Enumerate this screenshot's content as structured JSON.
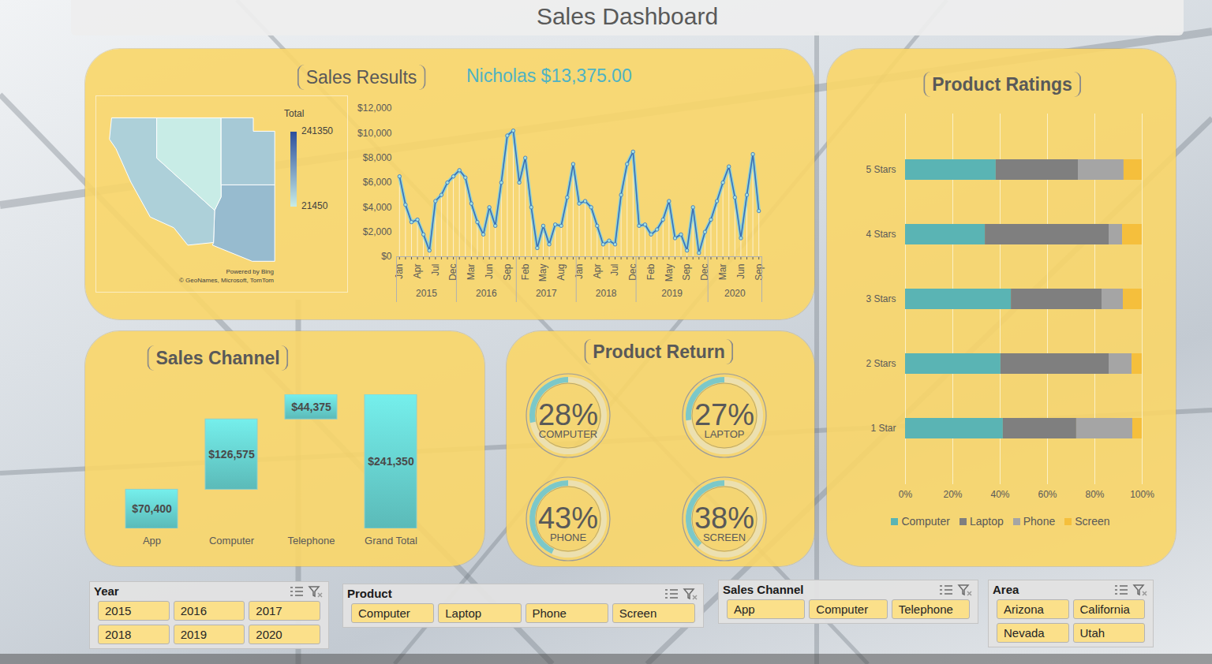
{
  "title": "Sales Dashboard",
  "chart_data": [
    {
      "type": "map",
      "title": "Sales Results",
      "highlight": "Nicholas $13,375.00",
      "regions": [
        "Arizona",
        "California",
        "Nevada",
        "Utah"
      ],
      "values": [
        89900,
        60000,
        21450,
        70000
      ],
      "legend_title": "Total",
      "color_range": [
        21450,
        241350
      ],
      "color_ticks": [
        21450,
        241350
      ],
      "attribution": [
        "Powered by Bing",
        "© GeoNames, Microsoft, TomTom"
      ]
    },
    {
      "type": "line",
      "categories": [
        "Jan",
        null,
        null,
        "Apr",
        null,
        null,
        "Jul",
        null,
        null,
        "Dec",
        null,
        null,
        "Mar",
        null,
        null,
        "Jun",
        null,
        null,
        "Sep",
        null,
        null,
        "Feb",
        null,
        null,
        "May",
        null,
        null,
        "Aug",
        null,
        null,
        "Jan",
        null,
        null,
        "Apr",
        null,
        null,
        "Jul",
        null,
        null,
        "Dec",
        null,
        null,
        "Feb",
        null,
        null,
        "May",
        null,
        null,
        "Sep",
        null,
        null,
        "Dec",
        null,
        null,
        "Mar",
        null,
        null,
        "Jun",
        null,
        null,
        "Sep"
      ],
      "x_groups": [
        {
          "label": "2015",
          "count": 10
        },
        {
          "label": "2016",
          "count": 10
        },
        {
          "label": "2017",
          "count": 10
        },
        {
          "label": "2018",
          "count": 10
        },
        {
          "label": "2019",
          "count": 12
        },
        {
          "label": "2020",
          "count": 9
        }
      ],
      "values": [
        6500,
        4200,
        2800,
        3000,
        1800,
        500,
        4500,
        5000,
        6000,
        6500,
        7000,
        6400,
        4300,
        2800,
        1800,
        4000,
        2500,
        6000,
        9800,
        10200,
        6000,
        8000,
        4000,
        700,
        2500,
        1000,
        2600,
        2500,
        4800,
        7500,
        4300,
        4500,
        4000,
        2500,
        1000,
        1300,
        1000,
        5000,
        7500,
        8500,
        2500,
        2600,
        1800,
        2200,
        3000,
        4500,
        1500,
        1800,
        500,
        4000,
        300,
        2000,
        3000,
        4500,
        6000,
        7300,
        4800,
        1500,
        5000,
        8300,
        3700
      ],
      "ylim": [
        0,
        12000
      ],
      "yticks": [
        {
          "value": 0,
          "label": "$0"
        },
        {
          "value": 2000,
          "label": "$2,000"
        },
        {
          "value": 4000,
          "label": "$4,000"
        },
        {
          "value": 6000,
          "label": "$6,000"
        },
        {
          "value": 8000,
          "label": "$8,000"
        },
        {
          "value": 10000,
          "label": "$10,000"
        },
        {
          "value": 12000,
          "label": "$12,000"
        }
      ],
      "color": "#3d6eb4",
      "marker": "circle"
    },
    {
      "type": "waterfall",
      "title": "Sales Channel",
      "categories": [
        "App",
        "Computer",
        "Telephone",
        "Grand Total"
      ],
      "values": [
        70400,
        126575,
        44375,
        241350
      ],
      "value_labels": [
        "$70,400",
        "$126,575",
        "$44,375",
        "$241,350"
      ],
      "data_labels": true,
      "tick_labels": "x",
      "ylim": [
        0,
        241350
      ],
      "color": "#5bbab8"
    },
    {
      "type": "donut",
      "title": "Product Return",
      "categories": [
        "COMPUTER",
        "LAPTOP",
        "PHONE",
        "SCREEN"
      ],
      "values": [
        28,
        27,
        43,
        38
      ],
      "value_labels": [
        "28%",
        "27%",
        "43%",
        "38%"
      ],
      "data_labels": true,
      "color": "#7cc8c8"
    },
    {
      "type": "bar",
      "title": "Product Ratings",
      "orientation": "horizontal",
      "stacked": true,
      "categories": [
        "5 Stars",
        "4 Stars",
        "3 Stars",
        "2 Stars",
        "1 Star"
      ],
      "series": [
        {
          "name": "Computer",
          "color": "#5ab4b4",
          "values": [
            38.3,
            33.7,
            44.7,
            40.3,
            41.3
          ]
        },
        {
          "name": "Laptop",
          "color": "#7f7f7f",
          "values": [
            34.7,
            52.3,
            38.3,
            45.7,
            31.0
          ]
        },
        {
          "name": "Phone",
          "color": "#a5a5a5",
          "values": [
            19.3,
            5.7,
            9.0,
            9.7,
            23.7
          ]
        },
        {
          "name": "Screen",
          "color": "#f5bf3c",
          "values": [
            7.7,
            8.3,
            8.0,
            4.3,
            4.0
          ]
        }
      ],
      "xlim": [
        0,
        100
      ],
      "xticks": [
        {
          "value": 0,
          "label": "0%"
        },
        {
          "value": 20,
          "label": "20%"
        },
        {
          "value": 40,
          "label": "40%"
        },
        {
          "value": 60,
          "label": "60%"
        },
        {
          "value": 80,
          "label": "80%"
        },
        {
          "value": 100,
          "label": "100%"
        }
      ],
      "grid": true,
      "legend": "bottom"
    }
  ],
  "slicers": [
    {
      "title": "Year",
      "items": [
        "2015",
        "2016",
        "2017",
        "2018",
        "2019",
        "2020"
      ]
    },
    {
      "title": "Product",
      "items": [
        "Computer",
        "Laptop",
        "Phone",
        "Screen"
      ]
    },
    {
      "title": "Sales Channel",
      "items": [
        "App",
        "Computer",
        "Telephone"
      ]
    },
    {
      "title": "Area",
      "items": [
        "Arizona",
        "California",
        "Nevada",
        "Utah"
      ]
    }
  ]
}
